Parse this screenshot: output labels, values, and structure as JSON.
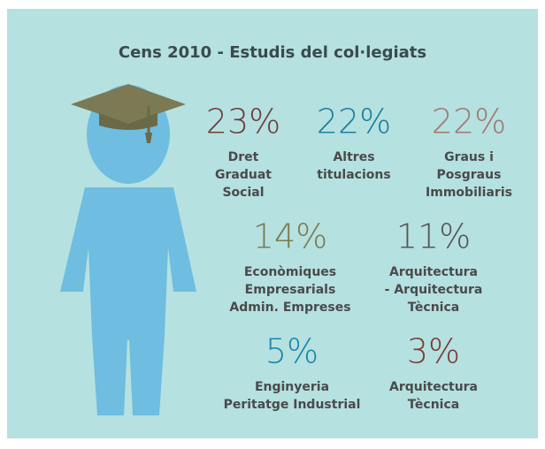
{
  "title": "Cens 2010 - Estudis del col·legiats",
  "items": [
    {
      "value": "23%",
      "color": "#6e3b3b",
      "label": [
        "Dret",
        "Graduat",
        "Social"
      ]
    },
    {
      "value": "22%",
      "color": "#1b7f9e",
      "label": [
        "Altres",
        "titulacions"
      ]
    },
    {
      "value": "22%",
      "color": "#a07874",
      "label": [
        "Graus i",
        "Posgraus",
        "Immobiliaris"
      ]
    },
    {
      "value": "14%",
      "color": "#7b7a4e",
      "label": [
        "Econòmiques",
        "Empresarials",
        "Admin. Empreses"
      ]
    },
    {
      "value": "11%",
      "color": "#555555",
      "label": [
        "Arquitectura",
        "- Arquitectura",
        "Tècnica"
      ]
    },
    {
      "value": "5%",
      "color": "#1a86aa",
      "label": [
        "Enginyeria",
        "Peritatge Industrial"
      ]
    },
    {
      "value": "3%",
      "color": "#7a3a36",
      "label": [
        "Arquitectura",
        "Tècnica"
      ]
    }
  ]
}
